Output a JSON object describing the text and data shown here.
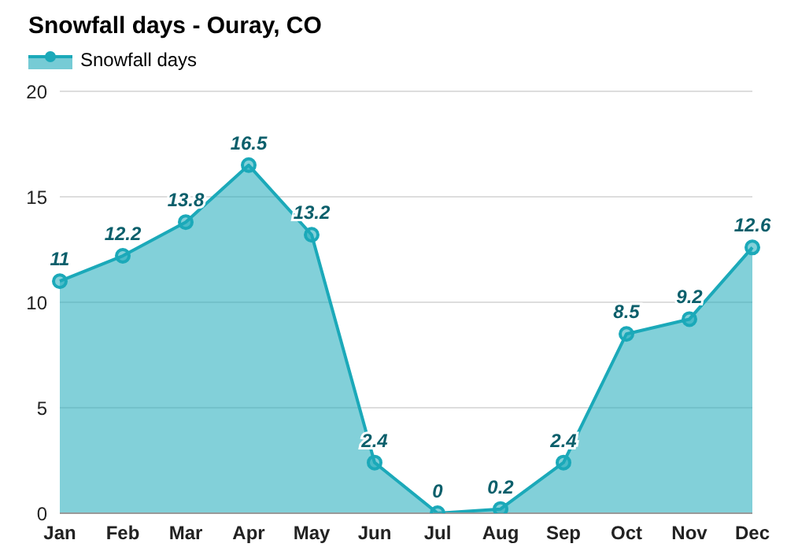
{
  "chart_data": {
    "type": "area",
    "title": "Snowfall days - Ouray, CO",
    "categories": [
      "Jan",
      "Feb",
      "Mar",
      "Apr",
      "May",
      "Jun",
      "Jul",
      "Aug",
      "Sep",
      "Oct",
      "Nov",
      "Dec"
    ],
    "series": [
      {
        "name": "Snowfall days",
        "color": "#1ba9b9",
        "values": [
          11,
          12.2,
          13.8,
          16.5,
          13.2,
          2.4,
          0,
          0.2,
          2.4,
          8.5,
          9.2,
          12.6
        ]
      }
    ],
    "ylim": [
      0,
      20
    ],
    "yticks": [
      0,
      5,
      10,
      15,
      20
    ],
    "grid": "y",
    "legend": "top left",
    "marker": "circle",
    "data_labels": true
  }
}
